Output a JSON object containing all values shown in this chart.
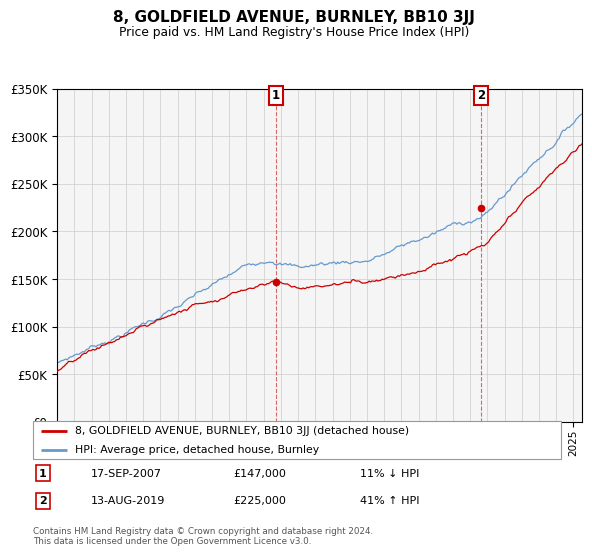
{
  "title": "8, GOLDFIELD AVENUE, BURNLEY, BB10 3JJ",
  "subtitle": "Price paid vs. HM Land Registry's House Price Index (HPI)",
  "legend_line1": "8, GOLDFIELD AVENUE, BURNLEY, BB10 3JJ (detached house)",
  "legend_line2": "HPI: Average price, detached house, Burnley",
  "transaction1_date": "17-SEP-2007",
  "transaction1_price": "£147,000",
  "transaction1_hpi": "11% ↓ HPI",
  "transaction2_date": "13-AUG-2019",
  "transaction2_price": "£225,000",
  "transaction2_hpi": "41% ↑ HPI",
  "footer": "Contains HM Land Registry data © Crown copyright and database right 2024.\nThis data is licensed under the Open Government Licence v3.0.",
  "red_color": "#cc0000",
  "blue_color": "#6699cc",
  "background_color": "#ffffff",
  "ylim": [
    0,
    350000
  ],
  "xlim_start": 1995.0,
  "xlim_end": 2025.5,
  "t1_year": 2007.72,
  "t2_year": 2019.62,
  "t1_price": 147000,
  "t2_price": 225000
}
